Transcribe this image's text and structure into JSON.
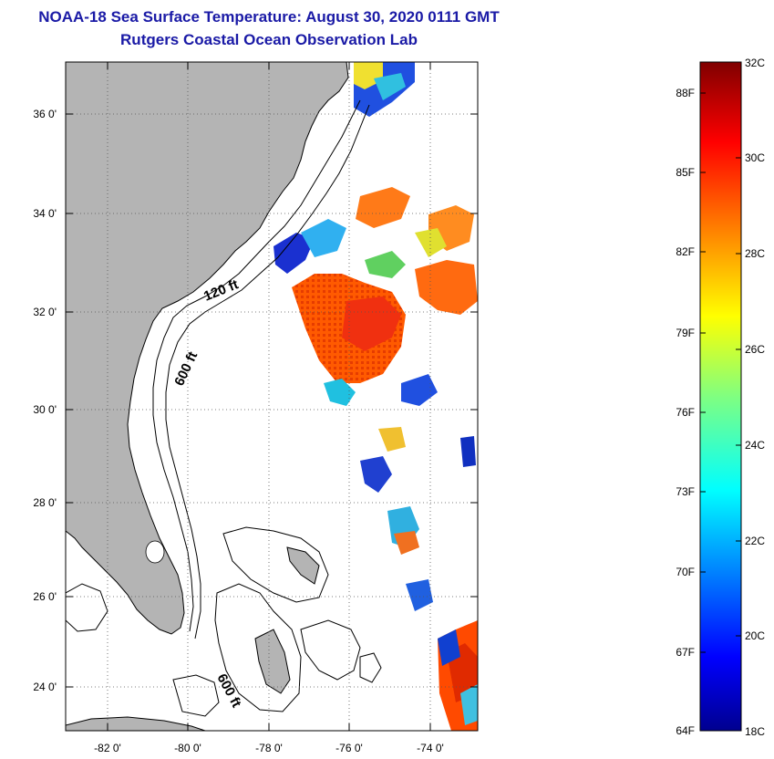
{
  "title": {
    "line1": "NOAA-18 Sea Surface Temperature:  August 30, 2020 0111 GMT",
    "line2": "Rutgers Coastal Ocean Observation Lab"
  },
  "map": {
    "lon_labels": [
      "-82 0'",
      "-80 0'",
      "-78 0'",
      "-76 0'",
      "-74 0'"
    ],
    "lat_labels": [
      "36 0'",
      "34 0'",
      "32 0'",
      "30 0'",
      "28 0'",
      "26 0'",
      "24 0'"
    ],
    "contour_labels": [
      "120 ft",
      "600 ft",
      "600 ft"
    ],
    "land_color": "#b4b4b4"
  },
  "colorbar": {
    "fahrenheit_labels": [
      "88F",
      "85F",
      "82F",
      "79F",
      "76F",
      "73F",
      "70F",
      "67F",
      "64F"
    ],
    "celsius_labels": [
      "32C",
      "30C",
      "28C",
      "26C",
      "24C",
      "22C",
      "20C",
      "18C"
    ],
    "colors": [
      "#00008f",
      "#0000ff",
      "#0080ff",
      "#00ffff",
      "#80ff80",
      "#ffff00",
      "#ff8000",
      "#ff0000",
      "#800000"
    ]
  }
}
